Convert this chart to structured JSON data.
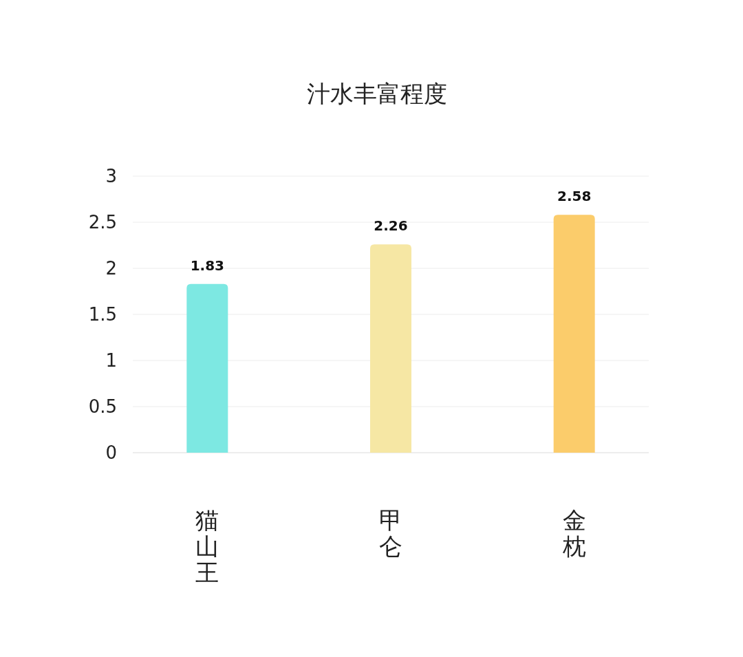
{
  "chart_data": {
    "type": "bar",
    "title": "汁水丰富程度",
    "categories": [
      "猫山王",
      "甲仑",
      "金枕"
    ],
    "values": [
      1.83,
      2.26,
      2.58
    ],
    "colors": [
      "#7de8e2",
      "#f6e7a4",
      "#fbcc6b"
    ],
    "ylim": [
      0,
      3
    ],
    "yticks": [
      0,
      0.5,
      1,
      1.5,
      2,
      2.5,
      3
    ],
    "grid": true,
    "data_labels": true
  }
}
